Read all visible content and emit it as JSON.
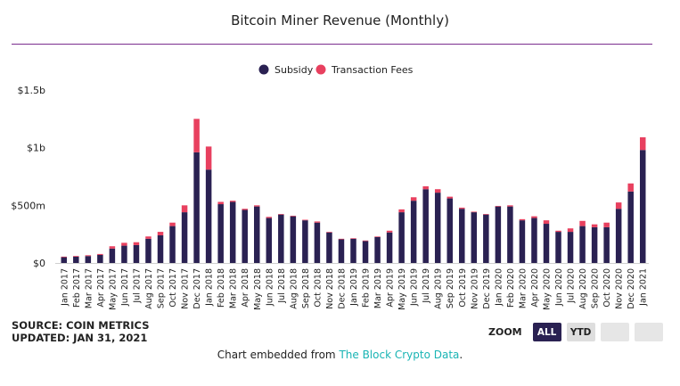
{
  "title": "Bitcoin Miner Revenue (Monthly)",
  "source_line": "SOURCE: COIN METRICS",
  "updated_line": "UPDATED: JAN 31, 2021",
  "embed_prefix": "Chart embedded from ",
  "embed_link": "The Block Crypto Data",
  "embed_suffix": ".",
  "zoom": {
    "label": "ZOOM",
    "buttons": [
      "ALL",
      "YTD",
      "",
      ""
    ],
    "active": "ALL"
  },
  "chart_data": {
    "type": "bar",
    "stacked": true,
    "legend_position": "top-center",
    "grid": false,
    "y_tick_labels": [
      "$0",
      "$500m",
      "$1b",
      "$1.5b"
    ],
    "y_ticks": [
      0,
      500,
      1000,
      1500
    ],
    "ylim": [
      0,
      1500
    ],
    "units": "millions USD",
    "categories": [
      "Jan 2017",
      "Feb 2017",
      "Mar 2017",
      "Apr 2017",
      "May 2017",
      "Jun 2017",
      "Jul 2017",
      "Aug 2017",
      "Sep 2017",
      "Oct 2017",
      "Nov 2017",
      "Dec 2017",
      "Jan 2018",
      "Feb 2018",
      "Mar 2018",
      "Apr 2018",
      "May 2018",
      "Jun 2018",
      "Jul 2018",
      "Aug 2018",
      "Sep 2018",
      "Oct 2018",
      "Nov 2018",
      "Dec 2018",
      "Jan 2019",
      "Feb 2019",
      "Mar 2019",
      "Apr 2019",
      "May 2019",
      "Jun 2019",
      "Jul 2019",
      "Aug 2019",
      "Sep 2019",
      "Oct 2019",
      "Nov 2019",
      "Dec 2019",
      "Jan 2020",
      "Feb 2020",
      "Mar 2020",
      "Apr 2020",
      "May 2020",
      "Jun 2020",
      "Jul 2020",
      "Aug 2020",
      "Sep 2020",
      "Oct 2020",
      "Nov 2020",
      "Dec 2020",
      "Jan 2021"
    ],
    "series": [
      {
        "name": "Subsidy",
        "color": "#2a2152",
        "values": [
          50,
          55,
          60,
          70,
          125,
          150,
          155,
          210,
          240,
          320,
          440,
          960,
          810,
          510,
          530,
          460,
          490,
          390,
          420,
          405,
          370,
          350,
          265,
          205,
          210,
          190,
          225,
          265,
          440,
          540,
          640,
          610,
          560,
          470,
          440,
          420,
          490,
          490,
          370,
          390,
          340,
          270,
          270,
          320,
          310,
          310,
          470,
          620,
          980
        ]
      },
      {
        "name": "Transaction Fees",
        "color": "#e8405f",
        "values": [
          5,
          6,
          7,
          8,
          20,
          25,
          25,
          20,
          30,
          30,
          60,
          290,
          200,
          20,
          10,
          10,
          10,
          10,
          5,
          5,
          5,
          10,
          5,
          5,
          5,
          5,
          5,
          15,
          25,
          30,
          25,
          30,
          15,
          10,
          5,
          5,
          5,
          10,
          10,
          15,
          30,
          10,
          30,
          45,
          25,
          40,
          55,
          70,
          110
        ]
      }
    ]
  }
}
